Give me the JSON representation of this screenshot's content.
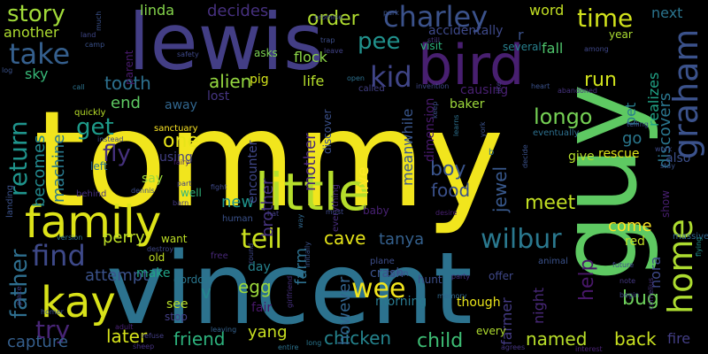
{
  "words": [
    {
      "text": "tommy",
      "color": "#f1e51d"
    },
    {
      "text": "vincent",
      "color": "#2c728e"
    },
    {
      "text": "lewis",
      "color": "#433e85"
    },
    {
      "text": "guy",
      "color": "#5ec962"
    },
    {
      "text": "bird",
      "color": "#481f70"
    },
    {
      "text": "little",
      "color": "#b5de2b"
    },
    {
      "text": "family",
      "color": "#dde318"
    },
    {
      "text": "graham",
      "color": "#3b528b"
    },
    {
      "text": "home",
      "color": "#addc30"
    },
    {
      "text": "charley",
      "color": "#3b528b"
    },
    {
      "text": "wilbur",
      "color": "#2a788e"
    },
    {
      "text": "kay",
      "color": "#d8e219"
    },
    {
      "text": "find",
      "color": "#3e4989"
    },
    {
      "text": "take",
      "color": "#355f8d"
    },
    {
      "text": "kid",
      "color": "#404588"
    },
    {
      "text": "story",
      "color": "#a0da39"
    },
    {
      "text": "time",
      "color": "#d0e11c"
    },
    {
      "text": "return",
      "color": "#1f948c"
    },
    {
      "text": "father",
      "color": "#2e6e8e"
    },
    {
      "text": "try",
      "color": "#482576"
    },
    {
      "text": "tell",
      "color": "#cae11f"
    },
    {
      "text": "wee",
      "color": "#f1e51d"
    },
    {
      "text": "get",
      "color": "#1e9b8a"
    },
    {
      "text": "pee",
      "color": "#21918c"
    },
    {
      "text": "fly",
      "color": "#46317e"
    },
    {
      "text": "order",
      "color": "#b0dd2f"
    },
    {
      "text": "run",
      "color": "#d0e11c"
    },
    {
      "text": "longo",
      "color": "#75d054"
    },
    {
      "text": "tanya",
      "color": "#34608d"
    },
    {
      "text": "cave",
      "color": "#e5e419"
    },
    {
      "text": "meet",
      "color": "#c2df23"
    },
    {
      "text": "boy",
      "color": "#3a548c"
    },
    {
      "text": "food",
      "color": "#3b518b"
    },
    {
      "text": "jewel",
      "color": "#38588c"
    },
    {
      "text": "discovers",
      "color": "#2a768e"
    },
    {
      "text": "help",
      "color": "#481769"
    },
    {
      "text": "bug",
      "color": "#6ccd5a"
    },
    {
      "text": "come",
      "color": "#fde725"
    },
    {
      "text": "back",
      "color": "#c8e020"
    },
    {
      "text": "child",
      "color": "#3dbc74"
    },
    {
      "text": "chicken",
      "color": "#25848e"
    },
    {
      "text": "named",
      "color": "#b8de29"
    },
    {
      "text": "friend",
      "color": "#2db27d"
    },
    {
      "text": "later",
      "color": "#d5e21a"
    },
    {
      "text": "egg",
      "color": "#9dd93b"
    },
    {
      "text": "perry",
      "color": "#bddf26"
    },
    {
      "text": "one",
      "color": "#e7e419"
    },
    {
      "text": "tooth",
      "color": "#2d708e"
    },
    {
      "text": "alien",
      "color": "#95d840"
    },
    {
      "text": "becomes",
      "color": "#23898e"
    },
    {
      "text": "end",
      "color": "#5ec962"
    },
    {
      "text": "attempt",
      "color": "#3b528b"
    },
    {
      "text": "capture",
      "color": "#355f8d"
    },
    {
      "text": "decides",
      "color": "#46307e"
    },
    {
      "text": "linda",
      "color": "#84d44b"
    },
    {
      "text": "another",
      "color": "#addc30"
    },
    {
      "text": "sky",
      "color": "#37b878"
    },
    {
      "text": "machine",
      "color": "#29798e"
    },
    {
      "text": "yang",
      "color": "#c8e020"
    },
    {
      "text": "brother",
      "color": "#46337f"
    },
    {
      "text": "mother",
      "color": "#482878"
    },
    {
      "text": "farm",
      "color": "#2d708e"
    },
    {
      "text": "however",
      "color": "#32648e"
    },
    {
      "text": "live",
      "color": "#fde725"
    },
    {
      "text": "meanwhile",
      "color": "#39568c"
    },
    {
      "text": "word",
      "color": "#c2df23"
    },
    {
      "text": "next",
      "color": "#2b748e"
    },
    {
      "text": "fall",
      "color": "#4ec36b"
    },
    {
      "text": "fire",
      "color": "#433e85"
    },
    {
      "text": "farmer",
      "color": "#443b84"
    },
    {
      "text": "night",
      "color": "#482878"
    },
    {
      "text": "nora",
      "color": "#3e4989"
    },
    {
      "text": "new",
      "color": "#1f948c"
    },
    {
      "text": "go",
      "color": "#2a788e"
    },
    {
      "text": "pet",
      "color": "#287d8e"
    },
    {
      "text": "realizes",
      "color": "#20a386"
    },
    {
      "text": "also",
      "color": "#3c4f8a"
    },
    {
      "text": "rescue",
      "color": "#dde318"
    },
    {
      "text": "give",
      "color": "#b5de2b"
    },
    {
      "text": "flock",
      "color": "#8bd646"
    },
    {
      "text": "life",
      "color": "#b5de2b"
    },
    {
      "text": "v",
      "color": "#24878e"
    },
    {
      "text": "pig",
      "color": "#d2e21b"
    },
    {
      "text": "asks",
      "color": "#7ad151"
    },
    {
      "text": "lost",
      "color": "#453581"
    },
    {
      "text": "away",
      "color": "#31668e"
    },
    {
      "text": "say",
      "color": "#9bd93c"
    },
    {
      "text": "left",
      "color": "#2c738e"
    },
    {
      "text": "using",
      "color": "#423f85"
    },
    {
      "text": "encounter",
      "color": "#3f4788"
    },
    {
      "text": "see",
      "color": "#b8de29"
    },
    {
      "text": "stop",
      "color": "#433e85"
    },
    {
      "text": "day",
      "color": "#26828e"
    },
    {
      "text": "fair",
      "color": "#481769"
    },
    {
      "text": "make",
      "color": "#20a486"
    },
    {
      "text": "old",
      "color": "#c2df23"
    },
    {
      "text": "gordon",
      "color": "#2a768e"
    },
    {
      "text": "want",
      "color": "#bddf26"
    },
    {
      "text": "red",
      "color": "#c0df25"
    },
    {
      "text": "show",
      "color": "#481f70"
    },
    {
      "text": "crash",
      "color": "#3b528b"
    },
    {
      "text": "hunt",
      "color": "#3d4e8a"
    },
    {
      "text": "offer",
      "color": "#3f4889"
    },
    {
      "text": "though",
      "color": "#eae51a"
    },
    {
      "text": "every",
      "color": "#b0dd2f"
    },
    {
      "text": "morning",
      "color": "#29798e"
    },
    {
      "text": "town",
      "color": "#3b528b"
    },
    {
      "text": "dimension",
      "color": "#481a6c"
    },
    {
      "text": "baker",
      "color": "#9dd93b"
    },
    {
      "text": "causing",
      "color": "#482071"
    },
    {
      "text": "accidentally",
      "color": "#3e4989"
    },
    {
      "text": "visit",
      "color": "#2db27d"
    },
    {
      "text": "several",
      "color": "#27808e"
    },
    {
      "text": "year",
      "color": "#aadc32"
    },
    {
      "text": "parent",
      "color": "#481a6c"
    },
    {
      "text": "sanctuary",
      "color": "#fde725"
    },
    {
      "text": "quickly",
      "color": "#b8de29"
    },
    {
      "text": "heart",
      "color": "#3b528b"
    },
    {
      "text": "eventually",
      "color": "#2d708e"
    },
    {
      "text": "abandoned",
      "color": "#46337f"
    },
    {
      "text": "invention",
      "color": "#3f4788"
    },
    {
      "text": "called",
      "color": "#423f85"
    },
    {
      "text": "well",
      "color": "#31b57b"
    },
    {
      "text": "baby",
      "color": "#482173"
    },
    {
      "text": "everything",
      "color": "#472c7a"
    },
    {
      "text": "discover",
      "color": "#3b518b"
    },
    {
      "text": "plane",
      "color": "#3d4e8a"
    },
    {
      "text": "animal",
      "color": "#3b528b"
    },
    {
      "text": "massive",
      "color": "#32648e"
    },
    {
      "text": "future",
      "color": "#3e4989"
    },
    {
      "text": "note",
      "color": "#453882"
    },
    {
      "text": "begin",
      "color": "#3f4889"
    },
    {
      "text": "flying",
      "color": "#21918c"
    },
    {
      "text": "interest",
      "color": "#482173"
    },
    {
      "text": "agrees",
      "color": "#453581"
    },
    {
      "text": "memory",
      "color": "#31688e"
    },
    {
      "text": "party",
      "color": "#46327e"
    },
    {
      "text": "long",
      "color": "#2a768e"
    },
    {
      "text": "entire",
      "color": "#2c738e"
    },
    {
      "text": "leaving",
      "color": "#34618d"
    },
    {
      "text": "refuse",
      "color": "#433e85"
    },
    {
      "text": "sheep",
      "color": "#46327e"
    },
    {
      "text": "adult",
      "color": "#482173"
    },
    {
      "text": "homer",
      "color": "#3b528b"
    },
    {
      "text": "place",
      "color": "#414287"
    },
    {
      "text": "version",
      "color": "#2d708e"
    },
    {
      "text": "destroy",
      "color": "#3f4788"
    },
    {
      "text": "free",
      "color": "#482878"
    },
    {
      "text": "human",
      "color": "#3b528b"
    },
    {
      "text": "fight",
      "color": "#3e4989"
    },
    {
      "text": "dennis",
      "color": "#3d4e8a"
    },
    {
      "text": "behind",
      "color": "#46307e"
    },
    {
      "text": "part",
      "color": "#423f85"
    },
    {
      "text": "barn",
      "color": "#443983"
    },
    {
      "text": "landing",
      "color": "#3b528b"
    },
    {
      "text": "instead",
      "color": "#3f4788"
    },
    {
      "text": "fairy",
      "color": "#482071"
    },
    {
      "text": "safety",
      "color": "#3e4989"
    },
    {
      "text": "log",
      "color": "#3b528b"
    },
    {
      "text": "call",
      "color": "#2c738e"
    },
    {
      "text": "land",
      "color": "#3f4788"
    },
    {
      "text": "camp",
      "color": "#3b528b"
    },
    {
      "text": "trap",
      "color": "#3d4e8a"
    },
    {
      "text": "leave",
      "color": "#414287"
    },
    {
      "text": "promise",
      "color": "#3e4989"
    },
    {
      "text": "open",
      "color": "#2d708e"
    },
    {
      "text": "park",
      "color": "#3b528b"
    },
    {
      "text": "still",
      "color": "#46327e"
    },
    {
      "text": "among",
      "color": "#3f4788"
    },
    {
      "text": "like",
      "color": "#443983"
    },
    {
      "text": "york",
      "color": "#3b528b"
    },
    {
      "text": "keep",
      "color": "#3d4e8a"
    },
    {
      "text": "learns",
      "color": "#2d708e"
    },
    {
      "text": "desire",
      "color": "#482071"
    },
    {
      "text": "must",
      "color": "#3e4989"
    },
    {
      "text": "way",
      "color": "#31688e"
    },
    {
      "text": "initially",
      "color": "#3b528b"
    },
    {
      "text": "girlfriend",
      "color": "#46307e"
    },
    {
      "text": "round",
      "color": "#3f4788"
    },
    {
      "text": "hat",
      "color": "#423f85"
    },
    {
      "text": "decide",
      "color": "#3b528b"
    },
    {
      "text": "telling",
      "color": "#3d4e8a"
    },
    {
      "text": "work",
      "color": "#3e4989"
    },
    {
      "text": "stay",
      "color": "#3b528b"
    },
    {
      "text": "cornelius",
      "color": "#46327e"
    },
    {
      "text": "much",
      "color": "#3b528b"
    },
    {
      "text": "r",
      "color": "#3b528b"
    },
    {
      "text": "b",
      "color": "#2d708e"
    }
  ]
}
